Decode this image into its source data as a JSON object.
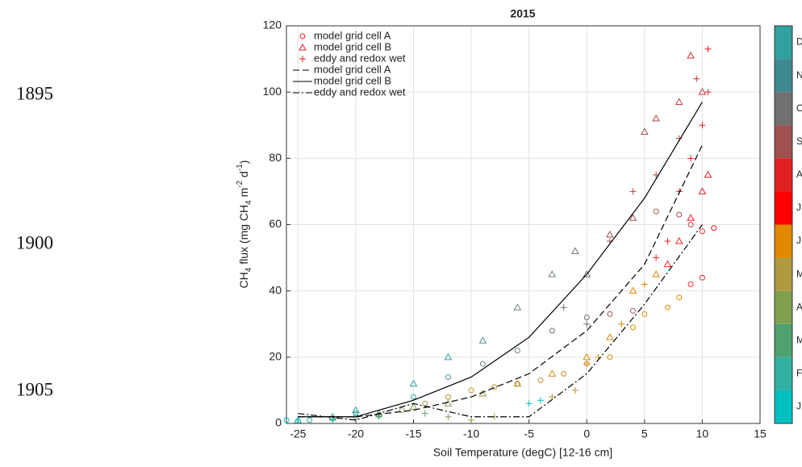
{
  "chart_data": {
    "type": "scatter",
    "title": "2015",
    "xlabel": "Soil Temperature (degC) [12-16 cm]",
    "ylabel_parts": [
      "CH",
      "4",
      " flux (mg CH",
      "4",
      " m",
      "-2",
      " d",
      "-1",
      ")"
    ],
    "xlim": [
      -26,
      15
    ],
    "ylim": [
      0,
      120
    ],
    "xticks": [
      -25,
      -20,
      -15,
      -10,
      -5,
      0,
      5,
      10,
      15
    ],
    "yticks": [
      0,
      20,
      40,
      60,
      80,
      100,
      120
    ],
    "grid": true,
    "legend": "upper-left",
    "series": [
      {
        "name": "model grid cell A",
        "kind": "points",
        "marker": "circle",
        "color": "#e02020",
        "x": [
          -26,
          -24,
          -22,
          -20,
          -18,
          -16,
          -14,
          -12,
          -10,
          -8,
          -6,
          -4,
          -2,
          0,
          2,
          4,
          5,
          7,
          8,
          9,
          10,
          11,
          10,
          9,
          8,
          6,
          4,
          2,
          0,
          -3,
          -6,
          -9,
          -12,
          -15,
          -20
        ],
        "y": [
          1,
          1,
          1.5,
          2,
          2.5,
          4,
          6,
          8,
          10,
          11,
          12,
          13,
          15,
          18,
          20,
          29,
          33,
          35,
          38,
          42,
          44,
          59,
          58,
          60,
          63,
          64,
          34,
          33,
          32,
          28,
          22,
          18,
          14,
          8,
          3
        ],
        "colors": [
          "#00bfbf",
          "#20b0a0",
          "#40a080",
          "#60a070",
          "#80a050",
          "#90a050",
          "#a09a40",
          "#b09a30",
          "#c09030",
          "#c09030",
          "#c09030",
          "#c89030",
          "#d09020",
          "#d09020",
          "#e08800",
          "#e08800",
          "#e08800",
          "#e08800",
          "#e08800",
          "#ff2020",
          "#ff2020",
          "#e02020",
          "#d03030",
          "#c04040",
          "#b04040",
          "#a05050",
          "#a05050",
          "#a05050",
          "#707070",
          "#707070",
          "#708080",
          "#708080",
          "#5090a0",
          "#30a0a0",
          "#30a0a0"
        ]
      },
      {
        "name": "model grid cell B",
        "kind": "points",
        "marker": "triangle",
        "color": "#e02020",
        "x": [
          -25,
          -22,
          -18,
          -15,
          -12,
          -9,
          -6,
          -3,
          0,
          2,
          4,
          6,
          7,
          8,
          9,
          10,
          10.5,
          10,
          9,
          8,
          6,
          5,
          4,
          2,
          0,
          -1,
          -3,
          -6,
          -9,
          -12,
          -15,
          -20
        ],
        "y": [
          1,
          2,
          3,
          5,
          6,
          9,
          12,
          15,
          20,
          26,
          40,
          45,
          48,
          55,
          62,
          70,
          75,
          100,
          111,
          97,
          92,
          88,
          62,
          57,
          45,
          52,
          45,
          35,
          25,
          20,
          12,
          4
        ],
        "colors": [
          "#20b0a0",
          "#40a080",
          "#60a070",
          "#80a050",
          "#90a050",
          "#a09a40",
          "#c09030",
          "#d09020",
          "#e08800",
          "#e08800",
          "#e08800",
          "#e08800",
          "#ff2020",
          "#ff2020",
          "#e02020",
          "#e02020",
          "#e02020",
          "#d03030",
          "#d03030",
          "#c04040",
          "#b04040",
          "#a05050",
          "#a05050",
          "#a05050",
          "#707070",
          "#707070",
          "#708080",
          "#708080",
          "#5090a0",
          "#30a0a0",
          "#30a0a0",
          "#30a0a0"
        ]
      },
      {
        "name": "eddy and redox wet",
        "kind": "points",
        "marker": "plus",
        "color": "#e02020",
        "x": [
          -25,
          -22,
          -18,
          -14,
          -12,
          -10,
          -8,
          -5,
          -4,
          -3,
          -1,
          0,
          1,
          3,
          5,
          6,
          7,
          8,
          9,
          10,
          10.5,
          10.5,
          9.5,
          8,
          6,
          4,
          2,
          0,
          -2
        ],
        "y": [
          1,
          1,
          2,
          3,
          2,
          1,
          2,
          6,
          7,
          8,
          10,
          18,
          20,
          30,
          42,
          50,
          55,
          70,
          80,
          90,
          113,
          100,
          104,
          86,
          75,
          70,
          55,
          30,
          35
        ],
        "colors": [
          "#00bfbf",
          "#20b0a0",
          "#40a080",
          "#60a070",
          "#80a050",
          "#90a050",
          "#a09a40",
          "#00bfbf",
          "#00bfbf",
          "#c09030",
          "#c09030",
          "#d09020",
          "#e08800",
          "#e08800",
          "#e08800",
          "#ff2020",
          "#ff2020",
          "#e02020",
          "#e02020",
          "#e02020",
          "#e02020",
          "#d03030",
          "#d03030",
          "#c04040",
          "#b04040",
          "#a05050",
          "#a05050",
          "#707070",
          "#707070"
        ]
      },
      {
        "name": "model grid cell A",
        "kind": "line",
        "dash": "8 4",
        "color": "#000000",
        "x": [
          -25,
          -20,
          -15,
          -10,
          -5,
          0,
          5,
          10
        ],
        "y": [
          2,
          2,
          4,
          8,
          15,
          28,
          48,
          84
        ]
      },
      {
        "name": "model grid cell B",
        "kind": "line",
        "dash": "none",
        "color": "#000000",
        "x": [
          -25,
          -20,
          -15,
          -10,
          -5,
          0,
          5,
          10
        ],
        "y": [
          2,
          2,
          7,
          14,
          26,
          45,
          68,
          97
        ]
      },
      {
        "name": "eddy and redox wet",
        "kind": "line",
        "dash": "8 3 2 3",
        "color": "#000000",
        "x": [
          -25,
          -20,
          -15,
          -10,
          -5,
          0,
          5,
          10
        ],
        "y": [
          3,
          1,
          6,
          2,
          2,
          15,
          36,
          60
        ]
      }
    ],
    "colorbar": {
      "colors": [
        "#00bfbf",
        "#30b0a0",
        "#50a070",
        "#80a050",
        "#b09a40",
        "#e08800",
        "#ff0000",
        "#e02020",
        "#a05050",
        "#707070",
        "#408890",
        "#30a0a0"
      ],
      "labels": [
        "J",
        "F",
        "M",
        "A",
        "M",
        "J",
        "J",
        "A",
        "S",
        "O",
        "N",
        "D"
      ]
    }
  },
  "side_labels": [
    "1895",
    "1900",
    "1905"
  ]
}
